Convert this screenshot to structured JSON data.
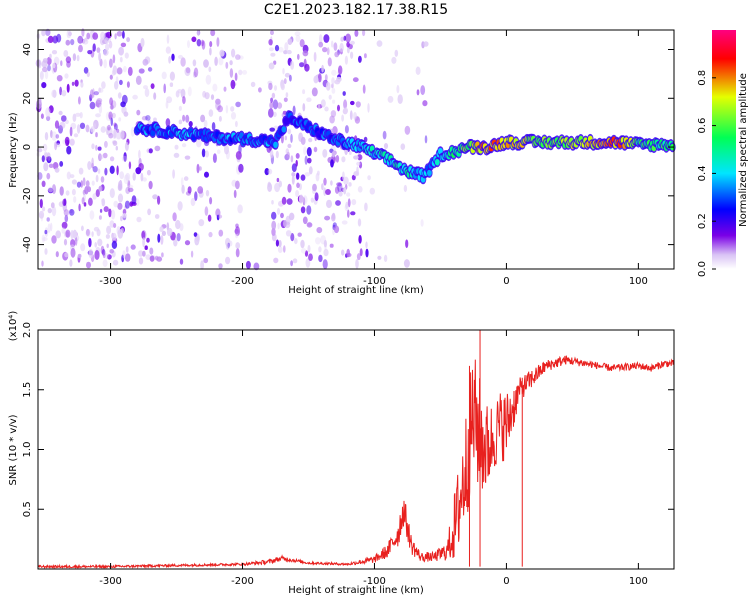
{
  "title": "C2E1.2023.182.17.38.R15",
  "chart_data": [
    {
      "type": "heatmap",
      "xlabel": "Height of straight line (km)",
      "ylabel": "Frequency (Hz)",
      "xlim": [
        -355,
        127
      ],
      "ylim": [
        -50,
        48
      ],
      "xticks": [
        -300,
        -200,
        -100,
        0,
        100
      ],
      "yticks": [
        -40,
        -20,
        0,
        20,
        40
      ],
      "grid": false,
      "colorbar": {
        "label": "Normalized spectral amplitude",
        "range": [
          0,
          1
        ],
        "ticks": [
          "0.0",
          "0.2",
          "0.4",
          "0.6",
          "0.8"
        ],
        "colors": [
          "#ffffff",
          "#7a00e6",
          "#0000ff",
          "#00e5ff",
          "#00ff55",
          "#e5ff00",
          "#ff0000",
          "#ff0080"
        ]
      },
      "noise_regions": [
        {
          "x_from": -355,
          "x_to": -285,
          "density": 0.9
        },
        {
          "x_from": -285,
          "x_to": -200,
          "density": 0.45
        },
        {
          "x_from": -200,
          "x_to": -180,
          "density": 0.05
        },
        {
          "x_from": -180,
          "x_to": -110,
          "density": 0.75
        },
        {
          "x_from": -110,
          "x_to": -60,
          "density": 0.12
        }
      ],
      "ridge": [
        {
          "x": -280,
          "y": 8,
          "amp": 0.3
        },
        {
          "x": -250,
          "y": 6,
          "amp": 0.35
        },
        {
          "x": -220,
          "y": 4,
          "amp": 0.3
        },
        {
          "x": -190,
          "y": 3,
          "amp": 0.35
        },
        {
          "x": -175,
          "y": 2,
          "amp": 0.3
        },
        {
          "x": -165,
          "y": 12,
          "amp": 0.25
        },
        {
          "x": -130,
          "y": 3,
          "amp": 0.3
        },
        {
          "x": -110,
          "y": 0,
          "amp": 0.4
        },
        {
          "x": -90,
          "y": -5,
          "amp": 0.45
        },
        {
          "x": -75,
          "y": -10,
          "amp": 0.45
        },
        {
          "x": -62,
          "y": -12,
          "amp": 0.35
        },
        {
          "x": -50,
          "y": -3,
          "amp": 0.4
        },
        {
          "x": -40,
          "y": -2,
          "amp": 0.5
        },
        {
          "x": -30,
          "y": 0,
          "amp": 0.6
        },
        {
          "x": -15,
          "y": 0,
          "amp": 0.8
        },
        {
          "x": 0,
          "y": 2,
          "amp": 0.75
        },
        {
          "x": 30,
          "y": 2,
          "amp": 0.6
        },
        {
          "x": 60,
          "y": 2,
          "amp": 0.7
        },
        {
          "x": 85,
          "y": 2,
          "amp": 0.8
        },
        {
          "x": 100,
          "y": 1,
          "amp": 0.55
        },
        {
          "x": 127,
          "y": 1,
          "amp": 0.5
        }
      ]
    },
    {
      "type": "line",
      "xlabel": "Height of straight line (km)",
      "ylabel": "SNR (10 * v/v)",
      "y_multiplier": "(x10⁴)",
      "xlim": [
        -355,
        127
      ],
      "ylim": [
        0,
        2.0
      ],
      "xticks": [
        -300,
        -200,
        -100,
        0,
        100
      ],
      "yticks": [
        "0.5",
        "1.0",
        "1.5",
        "2.0"
      ],
      "color": "#e8201e",
      "series": [
        {
          "x": [
            -355,
            -300,
            -250,
            -200,
            -180,
            -170,
            -150,
            -120,
            -100,
            -90,
            -82,
            -78,
            -72,
            -65,
            -55,
            -45,
            -38,
            -30,
            -25,
            -20,
            -15,
            -10,
            -5,
            0,
            5,
            10,
            20,
            30,
            45,
            60,
            80,
            100,
            110,
            120,
            127
          ],
          "y": [
            0.02,
            0.02,
            0.03,
            0.04,
            0.06,
            0.09,
            0.05,
            0.04,
            0.08,
            0.15,
            0.3,
            0.5,
            0.2,
            0.1,
            0.1,
            0.15,
            0.4,
            0.9,
            1.3,
            1.1,
            1.0,
            1.1,
            1.2,
            1.2,
            1.35,
            1.5,
            1.6,
            1.7,
            1.75,
            1.72,
            1.68,
            1.7,
            1.68,
            1.72,
            1.72
          ],
          "jitter": [
            0.01,
            0.01,
            0.01,
            0.01,
            0.02,
            0.02,
            0.01,
            0.01,
            0.03,
            0.06,
            0.12,
            0.15,
            0.08,
            0.04,
            0.04,
            0.08,
            0.35,
            0.5,
            0.55,
            0.5,
            0.4,
            0.3,
            0.3,
            0.3,
            0.2,
            0.1,
            0.08,
            0.05,
            0.04,
            0.03,
            0.03,
            0.03,
            0.03,
            0.03,
            0.03
          ]
        }
      ],
      "spikes": [
        {
          "x": -20,
          "y": 2.05
        },
        {
          "x": -28,
          "y": 1.7
        },
        {
          "x": 12,
          "y": 1.6
        }
      ]
    }
  ]
}
